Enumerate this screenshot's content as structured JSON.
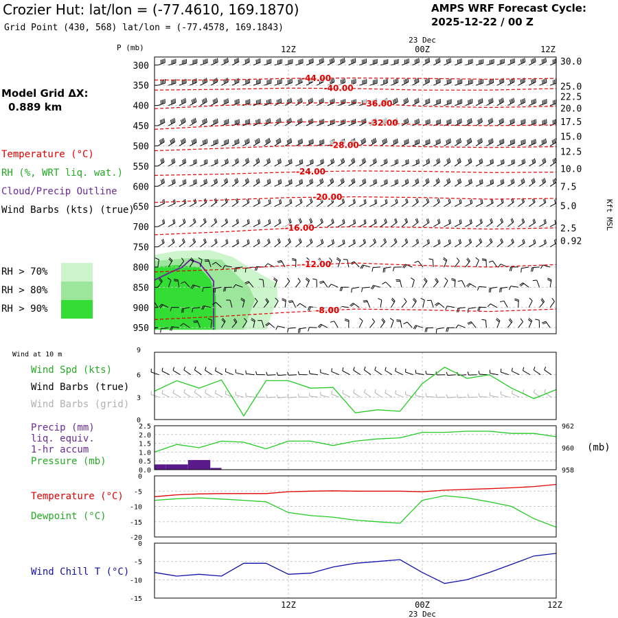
{
  "header": {
    "title": "Crozier Hut:  lat/lon = (-77.4610, 169.1870)",
    "subtitle": "Grid Point (430, 568) lat/lon = (-77.4578, 169.1843)",
    "cycle_line1": "AMPS WRF Forecast Cycle:",
    "cycle_line2": "2025-12-22 / 00  Z",
    "grid_line1": "Model Grid ΔX:",
    "grid_line2": "0.889 km"
  },
  "colors": {
    "temperature": "#e00000",
    "rh": "#22aa22",
    "cloud": "#6a2a9a",
    "wind": "#000000",
    "wind_grid": "#b0b0b0",
    "wind_speed": "#22cc22",
    "precip": "#5a1a8a",
    "pressure": "#22cc22",
    "dewpoint": "#22cc22",
    "wind_chill": "#1010aa",
    "rh70": "#ccf5cc",
    "rh80": "#9be69b",
    "rh90": "#33dd33"
  },
  "legend": {
    "temperature": "Temperature (°C)",
    "rh": "RH (%, WRT liq. wat.)",
    "cloud": "Cloud/Precip Outline",
    "wind": "Wind Barbs (kts) (true)",
    "rh70": "RH > 70%",
    "rh80": "RH > 80%",
    "rh90": "RH > 90%"
  },
  "time_axis": {
    "top_date": "23 Dec",
    "bottom_date": "23 Dec",
    "ticks": [
      "12Z",
      "00Z",
      "12Z"
    ],
    "tick_hours": [
      12,
      24,
      36
    ],
    "range_hours": [
      0,
      36
    ]
  },
  "chart_data": [
    {
      "type": "contour",
      "name": "cross-section",
      "yaxis_title": "P (mb)",
      "right_axis_title": "Kft MSL",
      "pressure_levels": [
        300,
        350,
        400,
        450,
        500,
        550,
        600,
        650,
        700,
        750,
        800,
        850,
        900,
        950
      ],
      "pressure_labels": [
        "300",
        "350",
        "400",
        "450",
        "500",
        "550",
        "600",
        "650",
        "700",
        "750",
        "800",
        "850",
        "900",
        "950"
      ],
      "kft_labels": [
        {
          "p": 290,
          "label": "30.0"
        },
        {
          "p": 352,
          "label": "25.0"
        },
        {
          "p": 378,
          "label": "22.5"
        },
        {
          "p": 407,
          "label": "20.0"
        },
        {
          "p": 440,
          "label": "17.5"
        },
        {
          "p": 476,
          "label": "15.0"
        },
        {
          "p": 514,
          "label": "12.5"
        },
        {
          "p": 556,
          "label": "10.0"
        },
        {
          "p": 600,
          "label": "7.5"
        },
        {
          "p": 648,
          "label": "5.0"
        },
        {
          "p": 703,
          "label": "2.5"
        },
        {
          "p": 735,
          "label": "0.92"
        }
      ],
      "temperature_contours": [
        {
          "label": "-44.00",
          "label_hour": 14.5,
          "points": [
            [
              0,
              337
            ],
            [
              6,
              337
            ],
            [
              12,
              333
            ],
            [
              18,
              332
            ],
            [
              24,
              333
            ],
            [
              30,
              335
            ],
            [
              36,
              333
            ]
          ]
        },
        {
          "label": "-40.00",
          "label_hour": 16.5,
          "points": [
            [
              0,
              362
            ],
            [
              6,
              360
            ],
            [
              12,
              357
            ],
            [
              18,
              358
            ],
            [
              24,
              362
            ],
            [
              30,
              362
            ],
            [
              36,
              358
            ]
          ]
        },
        {
          "label": "-36.00",
          "label_hour": 20.0,
          "points": [
            [
              0,
              408
            ],
            [
              6,
              400
            ],
            [
              12,
              394
            ],
            [
              18,
              393
            ],
            [
              24,
              402
            ],
            [
              30,
              405
            ],
            [
              36,
              402
            ]
          ]
        },
        {
          "label": "-32.00",
          "label_hour": 20.5,
          "points": [
            [
              0,
              459
            ],
            [
              6,
              450
            ],
            [
              12,
              441
            ],
            [
              18,
              440
            ],
            [
              24,
              448
            ],
            [
              30,
              450
            ],
            [
              36,
              448
            ]
          ]
        },
        {
          "label": "-28.00",
          "label_hour": 17.0,
          "points": [
            [
              0,
              512
            ],
            [
              6,
              506
            ],
            [
              12,
              500
            ],
            [
              18,
              498
            ],
            [
              24,
              502
            ],
            [
              30,
              504
            ],
            [
              36,
              502
            ]
          ]
        },
        {
          "label": "-24.00",
          "label_hour": 14.0,
          "points": [
            [
              0,
              573
            ],
            [
              6,
              570
            ],
            [
              12,
              565
            ],
            [
              18,
              562
            ],
            [
              24,
              563
            ],
            [
              30,
              566
            ],
            [
              36,
              565
            ]
          ]
        },
        {
          "label": "-20.00",
          "label_hour": 15.5,
          "points": [
            [
              0,
              640
            ],
            [
              6,
              634
            ],
            [
              12,
              628
            ],
            [
              18,
              626
            ],
            [
              24,
              628
            ],
            [
              30,
              632
            ],
            [
              36,
              630
            ]
          ]
        },
        {
          "label": "-16.00",
          "label_hour": 13.0,
          "points": [
            [
              0,
              720
            ],
            [
              6,
              713
            ],
            [
              12,
              704
            ],
            [
              18,
              700
            ],
            [
              24,
              702
            ],
            [
              30,
              706
            ],
            [
              36,
              703
            ]
          ]
        },
        {
          "label": "-12.00",
          "label_hour": 14.5,
          "points": [
            [
              0,
              812
            ],
            [
              6,
              806
            ],
            [
              12,
              796
            ],
            [
              18,
              790
            ],
            [
              24,
              796
            ],
            [
              30,
              800
            ],
            [
              36,
              794
            ]
          ]
        },
        {
          "label": "-8.00",
          "label_hour": 15.5,
          "points": [
            [
              0,
              930
            ],
            [
              6,
              922
            ],
            [
              12,
              912
            ],
            [
              18,
              904
            ],
            [
              24,
              906
            ],
            [
              30,
              910
            ],
            [
              36,
              904
            ]
          ]
        }
      ],
      "rh_regions": [
        {
          "level": "rh70",
          "points": [
            [
              0,
              770
            ],
            [
              2,
              760
            ],
            [
              5,
              758
            ],
            [
              7,
              775
            ],
            [
              9,
              810
            ],
            [
              11,
              840
            ],
            [
              11,
              880
            ],
            [
              10,
              955
            ],
            [
              0,
              955
            ]
          ]
        },
        {
          "level": "rh80",
          "points": [
            [
              0,
              785
            ],
            [
              3,
              778
            ],
            [
              6,
              782
            ],
            [
              7,
              810
            ],
            [
              8.5,
              850
            ],
            [
              9,
              880
            ],
            [
              8,
              955
            ],
            [
              0,
              955
            ]
          ]
        },
        {
          "level": "rh90",
          "points": [
            [
              0,
              800
            ],
            [
              2,
              795
            ],
            [
              4,
              800
            ],
            [
              5,
              830
            ],
            [
              5.5,
              870
            ],
            [
              5.5,
              955
            ],
            [
              0,
              955
            ]
          ]
        }
      ],
      "cloud_outline": [
        [
          0,
          832
        ],
        [
          1.5,
          812
        ],
        [
          2.5,
          800
        ],
        [
          3.2,
          782
        ],
        [
          4,
          790
        ],
        [
          4.6,
          810
        ],
        [
          5.3,
          835
        ],
        [
          5.3,
          955
        ]
      ]
    },
    {
      "type": "line",
      "name": "wind-speed",
      "title": "Wind at 10 m",
      "legend": [
        "Wind Spd (kts)",
        "Wind Barbs (true)",
        "Wind Barbs (grid)"
      ],
      "ylim": [
        0,
        9
      ],
      "yticks": [
        0,
        3,
        6,
        9
      ],
      "x": [
        0,
        2,
        4,
        6,
        8,
        10,
        12,
        14,
        16,
        18,
        20,
        22,
        24,
        26,
        28,
        30,
        32,
        34,
        36
      ],
      "values": [
        3.8,
        5.2,
        4.2,
        5.3,
        0.5,
        5.2,
        5.2,
        4.2,
        4.3,
        0.9,
        1.3,
        1.1,
        4.8,
        7.0,
        5.5,
        6.0,
        4.2,
        2.8,
        4.0
      ]
    },
    {
      "type": "bar+line",
      "name": "precip-pressure",
      "legend": [
        "Precip (mm)",
        "liq. equiv.",
        "1-hr accum",
        "Pressure (mb)"
      ],
      "ylim_left": [
        0,
        2.5
      ],
      "yticks_left": [
        "0.0",
        "0.5",
        "1.0",
        "1.5",
        "2.0",
        "2.5"
      ],
      "ylim_right": [
        958,
        962
      ],
      "yticks_right": [
        "958",
        "960",
        "962"
      ],
      "right_unit": "(mb)",
      "precip_hours": [
        0,
        1,
        2,
        3,
        4,
        5
      ],
      "precip": [
        0.3,
        0.3,
        0.3,
        0.55,
        0.55,
        0.1
      ],
      "pressure_x": [
        0,
        2,
        4,
        6,
        8,
        10,
        12,
        14,
        16,
        18,
        20,
        22,
        24,
        26,
        28,
        30,
        32,
        34,
        36
      ],
      "pressure": [
        959.6,
        960.3,
        960.0,
        960.6,
        960.5,
        959.9,
        960.6,
        960.6,
        960.2,
        960.6,
        960.8,
        960.9,
        961.4,
        961.4,
        961.5,
        961.5,
        961.3,
        961.3,
        961.0
      ]
    },
    {
      "type": "line",
      "name": "temp-dewpoint",
      "legend": [
        "Temperature (°C)",
        "Dewpoint (°C)"
      ],
      "ylim": [
        -20,
        0
      ],
      "yticks": [
        "-20",
        "-15",
        "-10",
        "-5",
        "0"
      ],
      "x": [
        0,
        2,
        4,
        6,
        8,
        10,
        12,
        14,
        16,
        18,
        20,
        22,
        24,
        26,
        28,
        30,
        32,
        34,
        36
      ],
      "temperature": [
        -6.8,
        -6.2,
        -5.9,
        -5.8,
        -5.8,
        -5.8,
        -5.2,
        -5.0,
        -4.9,
        -5.0,
        -5.0,
        -5.0,
        -5.2,
        -4.7,
        -4.4,
        -4.2,
        -3.9,
        -3.5,
        -2.8
      ],
      "dewpoint": [
        -8.0,
        -7.5,
        -7.2,
        -7.6,
        -8.0,
        -8.5,
        -12.0,
        -13.0,
        -13.5,
        -14.5,
        -15.0,
        -15.5,
        -8.0,
        -6.5,
        -7.2,
        -8.5,
        -10.0,
        -14.0,
        -16.8
      ]
    },
    {
      "type": "line",
      "name": "wind-chill",
      "legend": [
        "Wind Chill T (°C)"
      ],
      "ylim": [
        -15,
        0
      ],
      "yticks": [
        "-15",
        "-10",
        "-5",
        "0"
      ],
      "x": [
        0,
        2,
        4,
        6,
        8,
        10,
        12,
        14,
        16,
        18,
        20,
        22,
        24,
        26,
        28,
        30,
        32,
        34,
        36
      ],
      "values": [
        -8.0,
        -9.0,
        -8.5,
        -9.0,
        -5.5,
        -5.5,
        -8.5,
        -8.2,
        -6.5,
        -5.5,
        -5.0,
        -4.5,
        -8.0,
        -11.0,
        -10.0,
        -8.0,
        -5.8,
        -3.5,
        -2.8
      ]
    }
  ]
}
